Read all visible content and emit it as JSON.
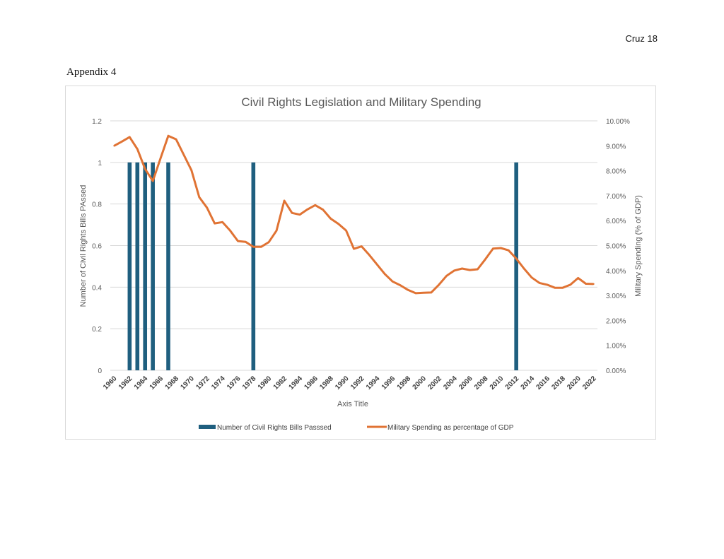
{
  "page": {
    "header_right": "Cruz 18",
    "section_label": "Appendix 4"
  },
  "chart_data": {
    "type": "bar+line",
    "title": "Civil Rights Legislation and Military Spending",
    "xlabel": "Axis Title",
    "ylabel_left": "Number of Civil Rights Bills PAssed",
    "ylabel_right": "Military Spending (% of GDP)",
    "ylim_left": [
      0,
      1.2
    ],
    "ylim_right": [
      0,
      10
    ],
    "left_ticks": [
      "0",
      "0.2",
      "0.4",
      "0.6",
      "0.8",
      "1",
      "1.2"
    ],
    "right_ticks": [
      "0.00%",
      "1.00%",
      "2.00%",
      "3.00%",
      "4.00%",
      "5.00%",
      "6.00%",
      "7.00%",
      "8.00%",
      "9.00%",
      "10.00%"
    ],
    "grid": true,
    "legend_position": "bottom",
    "categories": [
      1960,
      1961,
      1962,
      1963,
      1964,
      1965,
      1966,
      1967,
      1968,
      1969,
      1970,
      1971,
      1972,
      1973,
      1974,
      1975,
      1976,
      1977,
      1978,
      1979,
      1980,
      1981,
      1982,
      1983,
      1984,
      1985,
      1986,
      1987,
      1988,
      1989,
      1990,
      1991,
      1992,
      1993,
      1994,
      1995,
      1996,
      1997,
      1998,
      1999,
      2000,
      2001,
      2002,
      2003,
      2004,
      2005,
      2006,
      2007,
      2008,
      2009,
      2010,
      2011,
      2012,
      2013,
      2014,
      2015,
      2016,
      2017,
      2018,
      2019,
      2020,
      2021,
      2022
    ],
    "x_tick_labels": [
      "1960",
      "1962",
      "1964",
      "1966",
      "1968",
      "1970",
      "1972",
      "1974",
      "1976",
      "1978",
      "1980",
      "1982",
      "1984",
      "1986",
      "1988",
      "1990",
      "1992",
      "1994",
      "1996",
      "1998",
      "2000",
      "2002",
      "2004",
      "2006",
      "2008",
      "2010",
      "2012",
      "2014",
      "2016",
      "2018",
      "2020",
      "2022"
    ],
    "series": [
      {
        "name": "Number of Civil Rights Bills Passsed",
        "type": "bar",
        "axis": "left",
        "color": "#1f5f7f",
        "values": [
          0,
          0,
          1,
          1,
          1,
          1,
          0,
          1,
          0,
          0,
          0,
          0,
          0,
          0,
          0,
          0,
          0,
          0,
          1,
          0,
          0,
          0,
          0,
          0,
          0,
          0,
          0,
          0,
          0,
          0,
          0,
          0,
          0,
          0,
          0,
          0,
          0,
          0,
          0,
          0,
          0,
          0,
          0,
          0,
          0,
          0,
          0,
          0,
          0,
          0,
          0,
          0,
          1,
          0,
          0,
          0,
          0,
          0,
          0,
          0,
          0,
          0,
          0
        ]
      },
      {
        "name": "Military Spending as percentage of GDP",
        "type": "line",
        "axis": "right",
        "unit": "%",
        "color": "#e07334",
        "values": [
          9.0,
          9.17,
          9.35,
          8.87,
          8.07,
          7.59,
          8.5,
          9.4,
          9.26,
          8.64,
          8.02,
          6.94,
          6.52,
          5.89,
          5.94,
          5.6,
          5.18,
          5.15,
          4.95,
          4.95,
          5.14,
          5.6,
          6.8,
          6.31,
          6.24,
          6.45,
          6.62,
          6.44,
          6.08,
          5.87,
          5.6,
          4.87,
          4.97,
          4.62,
          4.24,
          3.86,
          3.56,
          3.41,
          3.22,
          3.09,
          3.11,
          3.12,
          3.43,
          3.79,
          4.0,
          4.08,
          4.02,
          4.05,
          4.45,
          4.88,
          4.9,
          4.81,
          4.48,
          4.08,
          3.72,
          3.5,
          3.43,
          3.31,
          3.31,
          3.43,
          3.7,
          3.47,
          3.46
        ]
      }
    ]
  }
}
